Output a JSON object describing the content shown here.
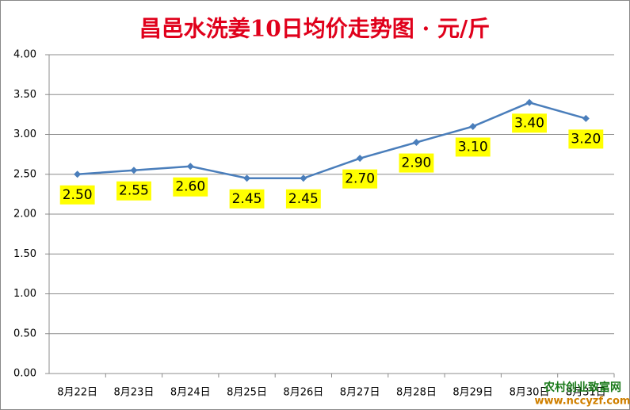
{
  "chart_data": {
    "type": "line",
    "title": "昌邑水洗姜10日均价走势图 · 元/斤",
    "categories": [
      "8月22日",
      "8月23日",
      "8月24日",
      "8月25日",
      "8月26日",
      "8月27日",
      "8月28日",
      "8月29日",
      "8月30日",
      "8月31日"
    ],
    "series": [
      {
        "name": "均价",
        "color": "#4a7ebb",
        "values": [
          2.5,
          2.55,
          2.6,
          2.45,
          2.45,
          2.7,
          2.9,
          3.1,
          3.4,
          3.2
        ],
        "value_labels": [
          "2.50",
          "2.55",
          "2.60",
          "2.45",
          "2.45",
          "2.70",
          "2.90",
          "3.10",
          "3.40",
          "3.20"
        ]
      }
    ],
    "ylim": [
      0,
      4
    ],
    "yticks": [
      {
        "value": 0,
        "label": "0.00"
      },
      {
        "value": 0.5,
        "label": "0.50"
      },
      {
        "value": 1,
        "label": "1.00"
      },
      {
        "value": 1.5,
        "label": "1.50"
      },
      {
        "value": 2,
        "label": "2.00"
      },
      {
        "value": 2.5,
        "label": "2.50"
      },
      {
        "value": 3,
        "label": "3.00"
      },
      {
        "value": 3.5,
        "label": "3.50"
      },
      {
        "value": 4,
        "label": "4.00"
      }
    ],
    "grid": true,
    "label_background": "#ffff00",
    "watermark": [
      "农村创业致富网",
      "www.nccyzf.com"
    ]
  }
}
